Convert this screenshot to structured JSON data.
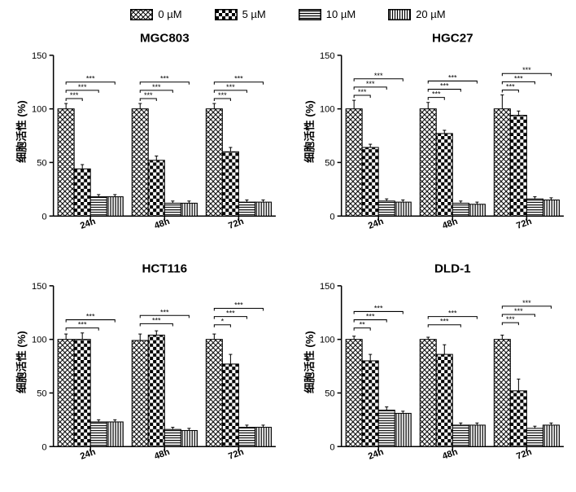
{
  "legend": [
    {
      "label": "0 µM",
      "pattern": "crosshatch"
    },
    {
      "label": "5 µM",
      "pattern": "checker"
    },
    {
      "label": "10 µM",
      "pattern": "hstripe"
    },
    {
      "label": "20 µM",
      "pattern": "vstripe"
    }
  ],
  "ylabel": "细胞活性 (%)",
  "ylim": [
    0,
    150
  ],
  "ytick_step": 50,
  "xcategories": [
    "24h",
    "48h",
    "72h"
  ],
  "bar_width": 0.22,
  "bar_border": "#000000",
  "error_cap_width": 4,
  "charts": [
    {
      "title": "MGC803",
      "groups": [
        {
          "values": [
            100,
            44,
            18,
            18
          ],
          "errors": [
            5,
            4,
            2,
            2
          ],
          "sig": [
            "***",
            "***",
            "***"
          ]
        },
        {
          "values": [
            100,
            52,
            12,
            12
          ],
          "errors": [
            5,
            4,
            2,
            2
          ],
          "sig": [
            "***",
            "***",
            "***"
          ]
        },
        {
          "values": [
            100,
            60,
            13,
            13
          ],
          "errors": [
            5,
            4,
            2,
            2
          ],
          "sig": [
            "***",
            "***",
            "***"
          ]
        }
      ]
    },
    {
      "title": "HGC27",
      "groups": [
        {
          "values": [
            100,
            64,
            14,
            13
          ],
          "errors": [
            8,
            3,
            2,
            2
          ],
          "sig": [
            "***",
            "***",
            "***"
          ]
        },
        {
          "values": [
            100,
            77,
            12,
            11
          ],
          "errors": [
            6,
            3,
            2,
            2
          ],
          "sig": [
            "***",
            "***",
            "***"
          ]
        },
        {
          "values": [
            100,
            94,
            16,
            15
          ],
          "errors": [
            13,
            4,
            2,
            2
          ],
          "sig": [
            "***",
            "***",
            "***"
          ]
        }
      ]
    },
    {
      "title": "HCT116",
      "groups": [
        {
          "values": [
            100,
            100,
            23,
            23
          ],
          "errors": [
            5,
            6,
            2,
            2
          ],
          "sig": [
            "",
            "***",
            "***"
          ]
        },
        {
          "values": [
            99,
            104,
            16,
            15
          ],
          "errors": [
            6,
            4,
            2,
            2
          ],
          "sig": [
            "",
            "***",
            "***"
          ]
        },
        {
          "values": [
            100,
            77,
            18,
            18
          ],
          "errors": [
            5,
            9,
            2,
            2
          ],
          "sig": [
            "*",
            "***",
            "***"
          ]
        }
      ]
    },
    {
      "title": "DLD-1",
      "groups": [
        {
          "values": [
            100,
            80,
            34,
            31
          ],
          "errors": [
            3,
            6,
            3,
            2
          ],
          "sig": [
            "**",
            "***",
            "***"
          ]
        },
        {
          "values": [
            100,
            86,
            20,
            20
          ],
          "errors": [
            2,
            9,
            2,
            2
          ],
          "sig": [
            "",
            "***",
            "***"
          ]
        },
        {
          "values": [
            100,
            52,
            17,
            20
          ],
          "errors": [
            4,
            11,
            2,
            2
          ],
          "sig": [
            "***",
            "***",
            "***"
          ]
        }
      ]
    }
  ],
  "pattern_colors": {
    "crosshatch_fg": "#000000",
    "crosshatch_bg": "#ffffff",
    "checker_fg": "#000000",
    "checker_bg": "#ffffff",
    "hstripe_fg": "#000000",
    "hstripe_bg": "#ffffff",
    "vstripe_fg": "#000000",
    "vstripe_bg": "#ffffff"
  },
  "axis_color": "#000000",
  "sig_bracket_color": "#000000"
}
